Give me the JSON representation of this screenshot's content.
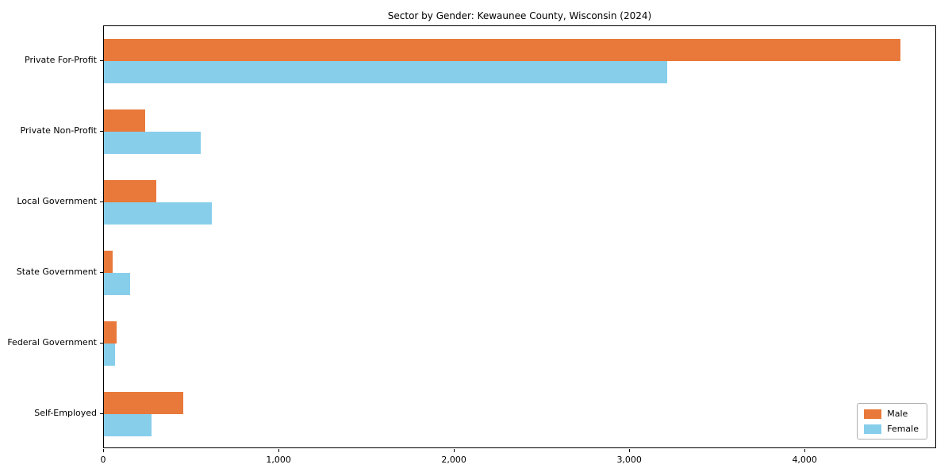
{
  "chart_data": {
    "type": "bar",
    "orientation": "horizontal",
    "title": "Sector by Gender: Kewaunee County, Wisconsin (2024)",
    "categories": [
      "Private For-Profit",
      "Private Non-Profit",
      "Local Government",
      "State Government",
      "Federal Government",
      "Self-Employed"
    ],
    "series": [
      {
        "name": "Male",
        "color": "#e8793a",
        "values": [
          4540,
          235,
          300,
          50,
          70,
          450
        ]
      },
      {
        "name": "Female",
        "color": "#87ceeb",
        "values": [
          3210,
          550,
          615,
          150,
          65,
          270
        ]
      }
    ],
    "xlim": [
      0,
      4750
    ],
    "xticks": [
      0,
      1000,
      2000,
      3000,
      4000
    ],
    "xtick_labels": [
      "0",
      "1,000",
      "2,000",
      "3,000",
      "4,000"
    ],
    "xlabel": "",
    "ylabel": "",
    "grid": false,
    "legend_position": "lower right"
  }
}
